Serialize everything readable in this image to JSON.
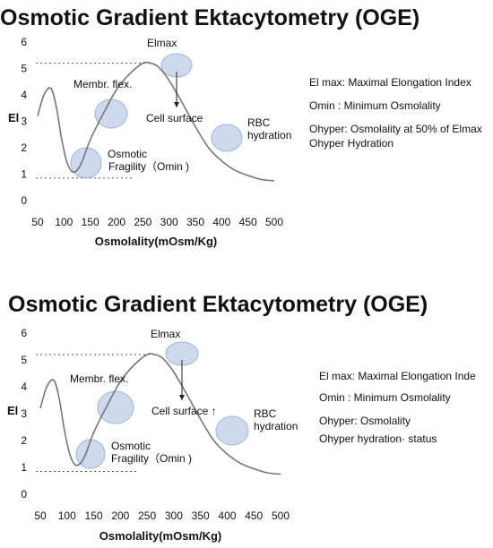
{
  "panels": [
    {
      "title": "Osmotic Gradient Ektacytometry (OGE)",
      "legend": [
        "El max: Maximal Elongation Index",
        "Omin :  Minimum Osmolality",
        "Ohyper: Osmolality at 50% of Elmax",
        "Ohyper Hydration"
      ],
      "annotations": {
        "elmax": "Elmax",
        "membr": "Membr. flex.",
        "cell_surface": "Cell surface",
        "rbc1": "RBC",
        "rbc2": "hydration",
        "osm1": "Osmotic",
        "osm2": "Fragility（Omin )"
      }
    },
    {
      "title": "Osmotic Gradient Ektacytometry (OGE)",
      "legend": [
        "El max: Maximal Elongation Inde",
        "Omin :  Minimum Osmolality",
        "Ohyper: Osmolality",
        "Ohyper  hydration·  status"
      ],
      "annotations": {
        "elmax": "Elmax",
        "membr": "Membr. flex.",
        "cell_surface": "Cell surface ↑",
        "rbc1": "RBC",
        "rbc2": "hydration",
        "osm1": "Osmotic",
        "osm2": "Fragility（Omin )"
      }
    }
  ],
  "colors": {
    "curve": "#777777",
    "highlight": "#c4d3ea",
    "highlight_edge": "#9fb3d4",
    "dotted": "#555555",
    "arrow": "#222222"
  },
  "chart_data": [
    {
      "type": "line",
      "xlabel": "Osmolality(mOsm/Kg)",
      "ylabel": "El",
      "x_ticks": [
        50,
        100,
        150,
        200,
        250,
        300,
        350,
        400,
        450,
        500
      ],
      "x_tick_labels": [
        "50",
        "100",
        "150",
        "200",
        "250",
        "300",
        "",
        "",
        "",
        "500"
      ],
      "y_ticks": [
        0,
        1,
        2,
        3,
        4,
        5,
        6
      ],
      "xlim": [
        50,
        500
      ],
      "ylim": [
        0,
        6
      ],
      "grid": false,
      "reference_lines": {
        "elmax": 5.2,
        "omin_level": 0.85
      },
      "x": [
        50,
        62,
        75,
        85,
        95,
        105,
        115,
        125,
        135,
        150,
        175,
        200,
        225,
        250,
        265,
        280,
        300,
        325,
        350,
        375,
        400,
        425,
        450,
        475,
        500
      ],
      "y": [
        3.2,
        4.0,
        4.25,
        3.6,
        2.4,
        1.5,
        1.1,
        1.15,
        1.5,
        2.3,
        3.3,
        4.2,
        4.8,
        5.2,
        5.2,
        5.05,
        4.55,
        3.7,
        2.8,
        2.0,
        1.5,
        1.15,
        0.95,
        0.8,
        0.75
      ]
    },
    {
      "type": "line",
      "xlabel": "Osmolality(mOsm/Kg)",
      "ylabel": "El",
      "x_ticks": [
        50,
        100,
        150,
        200,
        250,
        300,
        350,
        400,
        450,
        500
      ],
      "x_tick_labels": [
        "50",
        "100",
        "150",
        "200",
        "250",
        "300",
        "",
        "",
        "",
        "500"
      ],
      "y_ticks": [
        0,
        1,
        2,
        3,
        4,
        5,
        6
      ],
      "xlim": [
        50,
        500
      ],
      "ylim": [
        0,
        6
      ],
      "grid": false,
      "reference_lines": {
        "elmax": 5.2,
        "omin_level": 0.85
      },
      "x": [
        50,
        62,
        75,
        85,
        95,
        105,
        115,
        125,
        135,
        150,
        175,
        200,
        225,
        250,
        265,
        280,
        300,
        325,
        350,
        375,
        400,
        425,
        450,
        475,
        500
      ],
      "y": [
        3.2,
        4.0,
        4.25,
        3.6,
        2.4,
        1.5,
        1.1,
        1.15,
        1.5,
        2.3,
        3.3,
        4.2,
        4.8,
        5.2,
        5.2,
        5.05,
        4.55,
        3.7,
        2.8,
        2.0,
        1.5,
        1.15,
        0.95,
        0.8,
        0.75
      ]
    }
  ]
}
